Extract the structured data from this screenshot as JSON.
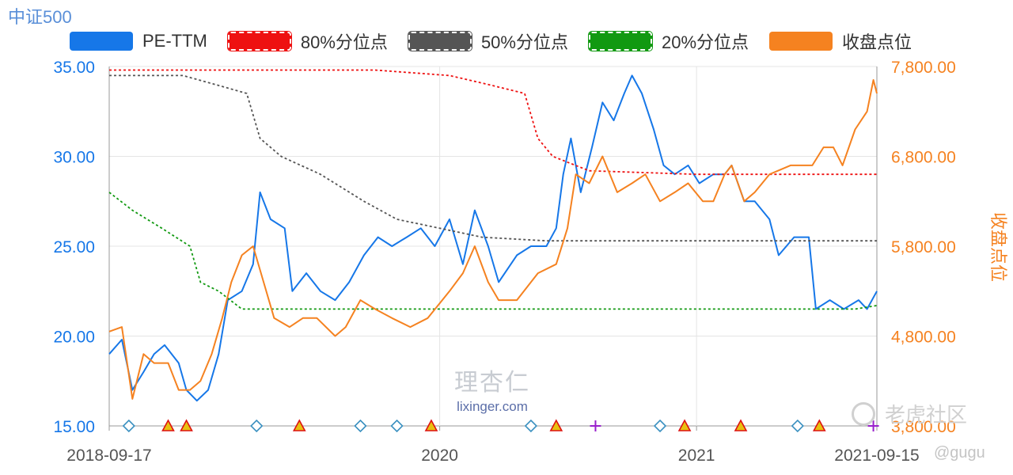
{
  "title": "中证500",
  "legend": [
    {
      "label": "PE-TTM",
      "color": "#1677e8",
      "style": "solid"
    },
    {
      "label": "80%分位点",
      "color": "#ee1111",
      "style": "dashed"
    },
    {
      "label": "50%分位点",
      "color": "#555555",
      "style": "dashed"
    },
    {
      "label": "20%分位点",
      "color": "#119911",
      "style": "dashed"
    },
    {
      "label": "收盘点位",
      "color": "#f58220",
      "style": "solid"
    }
  ],
  "watermark": {
    "logo": "理杏仁",
    "url": "lixinger.com"
  },
  "forum": {
    "name": "老虎社区",
    "user": "@gugu"
  },
  "chart_data": {
    "type": "line",
    "x_ticks": [
      "2018-09-17",
      "2020",
      "2021",
      "2021-09-15"
    ],
    "x_range": [
      "2018-09-17",
      "2021-09-15"
    ],
    "y_left": {
      "ticks": [
        "15.00",
        "20.00",
        "25.00",
        "30.00",
        "35.00"
      ],
      "range": [
        15,
        35
      ],
      "color": "#1677e8"
    },
    "y_right": {
      "label": "收盘点位",
      "ticks": [
        "3,800.00",
        "4,800.00",
        "5,800.00",
        "6,800.00",
        "7,800.00"
      ],
      "range": [
        3800,
        7800
      ],
      "color": "#f58220"
    },
    "series": [
      {
        "name": "PE-TTM",
        "axis": "left",
        "color": "#1677e8",
        "style": "solid",
        "points": [
          [
            "2018-09-17",
            19.0
          ],
          [
            "2018-10-05",
            19.8
          ],
          [
            "2018-10-20",
            17.0
          ],
          [
            "2018-11-05",
            18.0
          ],
          [
            "2018-11-20",
            19.0
          ],
          [
            "2018-12-05",
            19.5
          ],
          [
            "2018-12-25",
            18.5
          ],
          [
            "2019-01-05",
            17.0
          ],
          [
            "2019-01-20",
            16.4
          ],
          [
            "2019-02-05",
            17.0
          ],
          [
            "2019-02-20",
            19.0
          ],
          [
            "2019-03-05",
            22.0
          ],
          [
            "2019-03-25",
            22.5
          ],
          [
            "2019-04-10",
            24.0
          ],
          [
            "2019-04-20",
            28.0
          ],
          [
            "2019-05-05",
            26.5
          ],
          [
            "2019-05-25",
            26.0
          ],
          [
            "2019-06-05",
            22.5
          ],
          [
            "2019-06-25",
            23.5
          ],
          [
            "2019-07-15",
            22.5
          ],
          [
            "2019-08-05",
            22.0
          ],
          [
            "2019-08-25",
            23.0
          ],
          [
            "2019-09-15",
            24.5
          ],
          [
            "2019-10-05",
            25.5
          ],
          [
            "2019-10-25",
            25.0
          ],
          [
            "2019-11-15",
            25.5
          ],
          [
            "2019-12-05",
            26.0
          ],
          [
            "2019-12-25",
            25.0
          ],
          [
            "2020-01-15",
            26.5
          ],
          [
            "2020-02-03",
            24.0
          ],
          [
            "2020-02-20",
            27.0
          ],
          [
            "2020-03-10",
            25.0
          ],
          [
            "2020-03-25",
            23.0
          ],
          [
            "2020-04-20",
            24.5
          ],
          [
            "2020-05-10",
            25.0
          ],
          [
            "2020-06-01",
            25.0
          ],
          [
            "2020-06-15",
            26.0
          ],
          [
            "2020-06-25",
            29.0
          ],
          [
            "2020-07-06",
            31.0
          ],
          [
            "2020-07-20",
            28.0
          ],
          [
            "2020-08-05",
            30.5
          ],
          [
            "2020-08-20",
            33.0
          ],
          [
            "2020-09-05",
            32.0
          ],
          [
            "2020-09-20",
            33.5
          ],
          [
            "2020-10-01",
            34.5
          ],
          [
            "2020-10-15",
            33.5
          ],
          [
            "2020-11-01",
            31.5
          ],
          [
            "2020-11-15",
            29.5
          ],
          [
            "2020-12-01",
            29.0
          ],
          [
            "2020-12-20",
            29.5
          ],
          [
            "2021-01-05",
            28.5
          ],
          [
            "2021-01-25",
            29.0
          ],
          [
            "2021-02-10",
            29.0
          ],
          [
            "2021-02-20",
            29.5
          ],
          [
            "2021-03-10",
            27.5
          ],
          [
            "2021-03-25",
            27.5
          ],
          [
            "2021-04-15",
            26.5
          ],
          [
            "2021-04-28",
            24.5
          ],
          [
            "2021-05-20",
            25.5
          ],
          [
            "2021-06-10",
            25.5
          ],
          [
            "2021-06-20",
            21.5
          ],
          [
            "2021-07-10",
            22.0
          ],
          [
            "2021-07-30",
            21.5
          ],
          [
            "2021-08-20",
            22.0
          ],
          [
            "2021-09-01",
            21.5
          ],
          [
            "2021-09-15",
            22.5
          ]
        ]
      },
      {
        "name": "80%分位点",
        "axis": "left",
        "color": "#ee1111",
        "style": "dashed",
        "points": [
          [
            "2018-09-17",
            34.8
          ],
          [
            "2019-10-01",
            34.8
          ],
          [
            "2020-01-15",
            34.5
          ],
          [
            "2020-03-10",
            34.0
          ],
          [
            "2020-05-01",
            33.5
          ],
          [
            "2020-05-20",
            31.0
          ],
          [
            "2020-06-10",
            30.0
          ],
          [
            "2020-08-01",
            29.2
          ],
          [
            "2021-01-01",
            29.0
          ],
          [
            "2021-09-15",
            29.0
          ]
        ]
      },
      {
        "name": "50%分位点",
        "axis": "left",
        "color": "#555555",
        "style": "dashed",
        "points": [
          [
            "2018-09-17",
            34.5
          ],
          [
            "2018-12-31",
            34.5
          ],
          [
            "2019-02-15",
            34.0
          ],
          [
            "2019-04-01",
            33.5
          ],
          [
            "2019-04-20",
            31.0
          ],
          [
            "2019-05-20",
            30.0
          ],
          [
            "2019-07-15",
            29.0
          ],
          [
            "2019-09-15",
            27.5
          ],
          [
            "2019-11-01",
            26.5
          ],
          [
            "2020-01-01",
            26.0
          ],
          [
            "2020-03-01",
            25.5
          ],
          [
            "2020-06-01",
            25.3
          ],
          [
            "2021-09-15",
            25.3
          ]
        ]
      },
      {
        "name": "20%分位点",
        "axis": "left",
        "color": "#119911",
        "style": "dashed",
        "points": [
          [
            "2018-09-17",
            28.0
          ],
          [
            "2018-10-20",
            27.0
          ],
          [
            "2018-12-01",
            26.0
          ],
          [
            "2019-01-10",
            25.0
          ],
          [
            "2019-01-25",
            23.0
          ],
          [
            "2019-02-20",
            22.5
          ],
          [
            "2019-03-25",
            21.5
          ],
          [
            "2021-08-15",
            21.5
          ],
          [
            "2021-09-15",
            21.7
          ]
        ]
      },
      {
        "name": "收盘点位",
        "axis": "right",
        "color": "#f58220",
        "style": "solid",
        "points": [
          [
            "2018-09-17",
            4850
          ],
          [
            "2018-10-05",
            4900
          ],
          [
            "2018-10-20",
            4100
          ],
          [
            "2018-11-05",
            4600
          ],
          [
            "2018-11-20",
            4500
          ],
          [
            "2018-12-10",
            4500
          ],
          [
            "2018-12-25",
            4200
          ],
          [
            "2019-01-10",
            4200
          ],
          [
            "2019-01-25",
            4300
          ],
          [
            "2019-02-10",
            4600
          ],
          [
            "2019-02-25",
            5000
          ],
          [
            "2019-03-10",
            5400
          ],
          [
            "2019-03-25",
            5700
          ],
          [
            "2019-04-10",
            5800
          ],
          [
            "2019-04-25",
            5400
          ],
          [
            "2019-05-10",
            5000
          ],
          [
            "2019-06-01",
            4900
          ],
          [
            "2019-06-20",
            5000
          ],
          [
            "2019-07-10",
            5000
          ],
          [
            "2019-08-05",
            4800
          ],
          [
            "2019-08-20",
            4900
          ],
          [
            "2019-09-10",
            5200
          ],
          [
            "2019-10-01",
            5100
          ],
          [
            "2019-10-25",
            5000
          ],
          [
            "2019-11-20",
            4900
          ],
          [
            "2019-12-15",
            5000
          ],
          [
            "2020-01-15",
            5300
          ],
          [
            "2020-02-03",
            5500
          ],
          [
            "2020-02-20",
            5800
          ],
          [
            "2020-03-10",
            5400
          ],
          [
            "2020-03-25",
            5200
          ],
          [
            "2020-04-20",
            5200
          ],
          [
            "2020-05-20",
            5500
          ],
          [
            "2020-06-15",
            5600
          ],
          [
            "2020-07-01",
            6000
          ],
          [
            "2020-07-13",
            6600
          ],
          [
            "2020-08-01",
            6500
          ],
          [
            "2020-08-20",
            6800
          ],
          [
            "2020-09-10",
            6400
          ],
          [
            "2020-10-01",
            6500
          ],
          [
            "2020-10-20",
            6600
          ],
          [
            "2020-11-10",
            6300
          ],
          [
            "2020-12-01",
            6400
          ],
          [
            "2020-12-20",
            6500
          ],
          [
            "2021-01-10",
            6300
          ],
          [
            "2021-01-25",
            6300
          ],
          [
            "2021-02-10",
            6600
          ],
          [
            "2021-02-20",
            6700
          ],
          [
            "2021-03-10",
            6300
          ],
          [
            "2021-03-25",
            6400
          ],
          [
            "2021-04-15",
            6600
          ],
          [
            "2021-05-15",
            6700
          ],
          [
            "2021-06-15",
            6700
          ],
          [
            "2021-07-01",
            6900
          ],
          [
            "2021-07-15",
            6900
          ],
          [
            "2021-07-28",
            6700
          ],
          [
            "2021-08-15",
            7100
          ],
          [
            "2021-09-01",
            7300
          ],
          [
            "2021-09-10",
            7650
          ],
          [
            "2021-09-15",
            7500
          ]
        ]
      }
    ],
    "markers": [
      {
        "date": "2018-10-15",
        "shape": "diamond",
        "color": "#3a90c0"
      },
      {
        "date": "2018-12-10",
        "shape": "triangle",
        "color": "#e8c010"
      },
      {
        "date": "2019-01-05",
        "shape": "triangle",
        "color": "#e8c010"
      },
      {
        "date": "2019-04-15",
        "shape": "diamond",
        "color": "#3a90c0"
      },
      {
        "date": "2019-06-15",
        "shape": "triangle",
        "color": "#e8c010"
      },
      {
        "date": "2019-09-10",
        "shape": "diamond",
        "color": "#3a90c0"
      },
      {
        "date": "2019-11-01",
        "shape": "diamond",
        "color": "#3a90c0"
      },
      {
        "date": "2019-12-20",
        "shape": "triangle",
        "color": "#e8c010"
      },
      {
        "date": "2020-05-10",
        "shape": "diamond",
        "color": "#3a90c0"
      },
      {
        "date": "2020-06-15",
        "shape": "triangle",
        "color": "#e8c010"
      },
      {
        "date": "2020-08-10",
        "shape": "plus",
        "color": "#9920cc"
      },
      {
        "date": "2020-11-10",
        "shape": "diamond",
        "color": "#3a90c0"
      },
      {
        "date": "2020-12-15",
        "shape": "triangle",
        "color": "#e8c010"
      },
      {
        "date": "2021-03-05",
        "shape": "triangle",
        "color": "#e8c010"
      },
      {
        "date": "2021-05-25",
        "shape": "diamond",
        "color": "#3a90c0"
      },
      {
        "date": "2021-06-25",
        "shape": "triangle",
        "color": "#e8c010"
      },
      {
        "date": "2021-09-10",
        "shape": "plus",
        "color": "#9920cc"
      }
    ],
    "grid": true,
    "legend_position": "top"
  }
}
